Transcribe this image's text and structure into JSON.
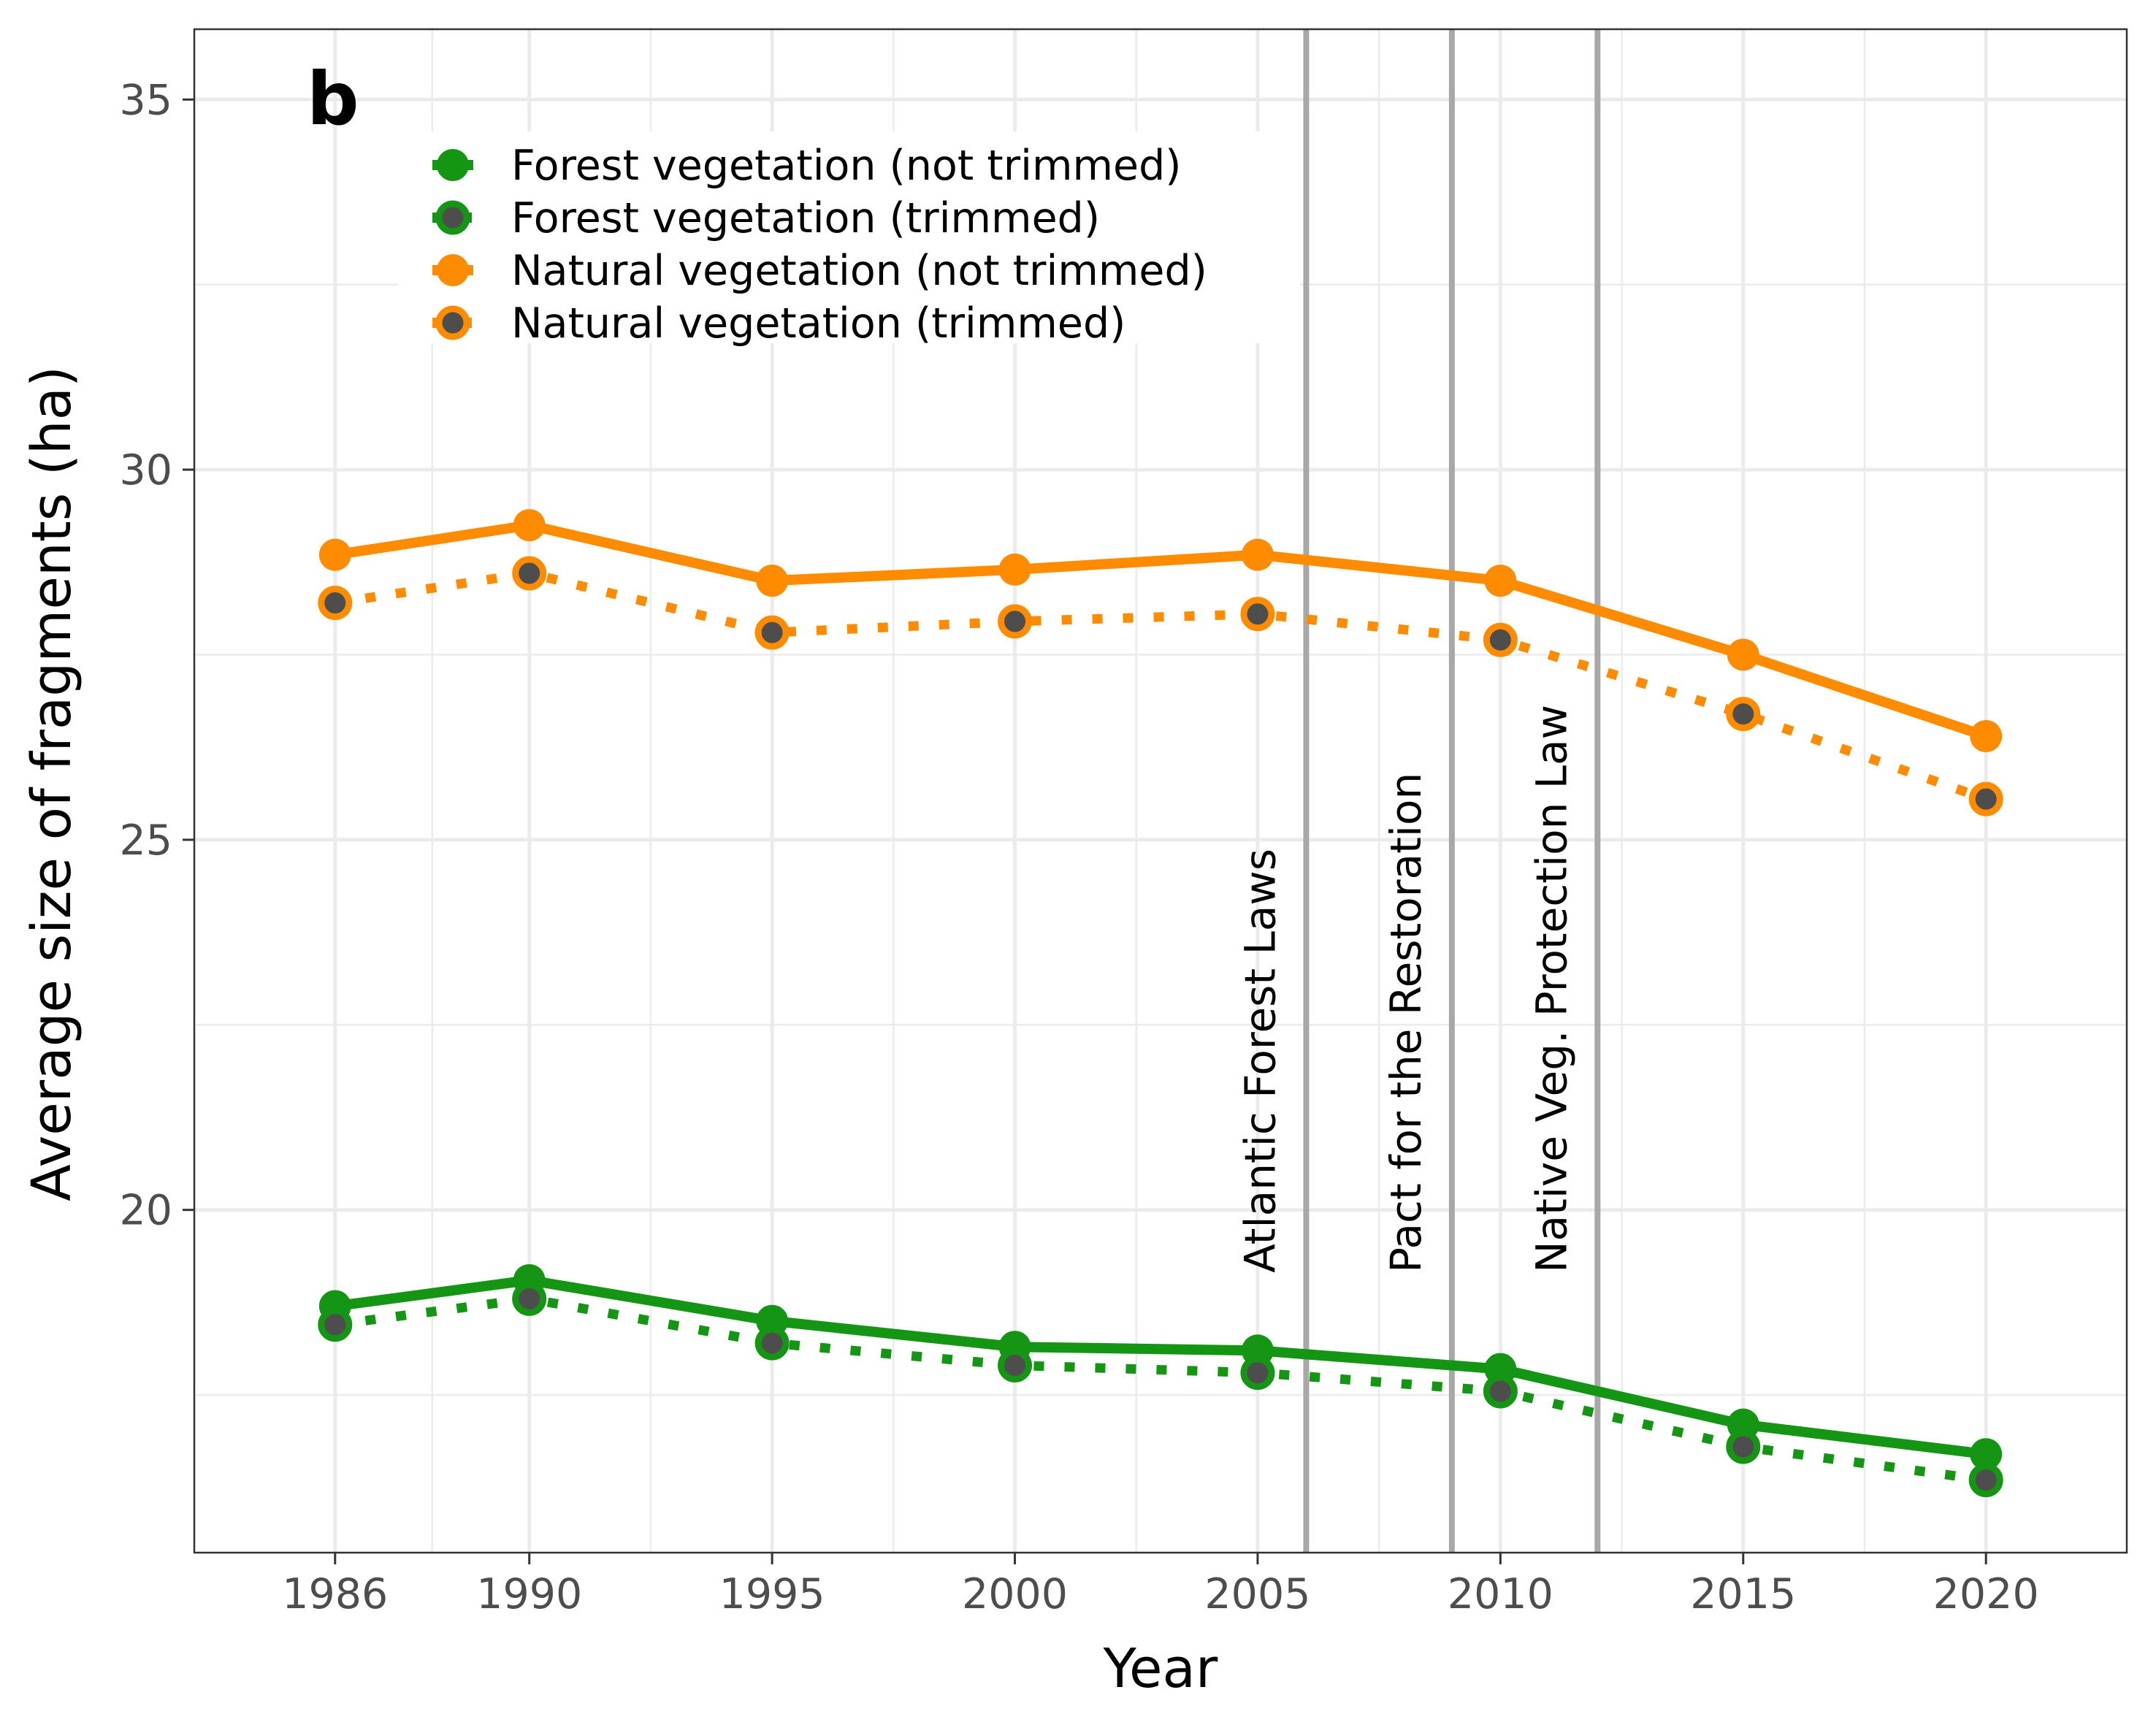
{
  "chart_data": {
    "type": "line",
    "panel_label": "b",
    "xlabel": "Year",
    "ylabel": "Average size of fragments (ha)",
    "xlim": [
      1983.1,
      2022.9
    ],
    "ylim": [
      15.37,
      35.95
    ],
    "x_ticks": [
      1986,
      1990,
      1995,
      2000,
      2005,
      2010,
      2015,
      2020
    ],
    "y_ticks": [
      20,
      25,
      30,
      35
    ],
    "y_minor_ticks": [
      17.5,
      22.5,
      27.5,
      32.5
    ],
    "grid": true,
    "legend_position": "top-left",
    "x": [
      1986,
      1990,
      1995,
      2000,
      2005,
      2010,
      2015,
      2020
    ],
    "series": [
      {
        "name": "Forest vegetation (not trimmed)",
        "line": "solid",
        "color": "#149614",
        "point_fill": "#149614",
        "values": [
          18.7,
          19.05,
          18.5,
          18.15,
          18.1,
          17.85,
          17.1,
          16.7
        ]
      },
      {
        "name": "Forest vegetation (trimmed)",
        "line": "dotted",
        "color": "#149614",
        "point_fill": "#4d4d4d",
        "values": [
          18.45,
          18.8,
          18.2,
          17.9,
          17.8,
          17.55,
          16.8,
          16.35
        ]
      },
      {
        "name": "Natural vegetation (not trimmed)",
        "line": "solid",
        "color": "#ff8c00",
        "point_fill": "#ff8c00",
        "values": [
          28.85,
          29.25,
          28.5,
          28.65,
          28.85,
          28.5,
          27.5,
          26.4
        ]
      },
      {
        "name": "Natural vegetation (trimmed)",
        "line": "dotted",
        "color": "#ff8c00",
        "point_fill": "#4d4d4d",
        "values": [
          28.2,
          28.6,
          27.8,
          27.95,
          28.05,
          27.7,
          26.7,
          25.55
        ]
      }
    ],
    "annotations": [
      {
        "x": 2006,
        "label": "Atlantic Forest Laws"
      },
      {
        "x": 2009,
        "label": "Pact for the Restoration"
      },
      {
        "x": 2012,
        "label": "Native Veg. Protection Law"
      }
    ],
    "colors": {
      "grid": "#ebebeb",
      "vline": "#a8a8a8",
      "tick_text": "#4d4d4d",
      "axis_title": "#000000"
    }
  }
}
